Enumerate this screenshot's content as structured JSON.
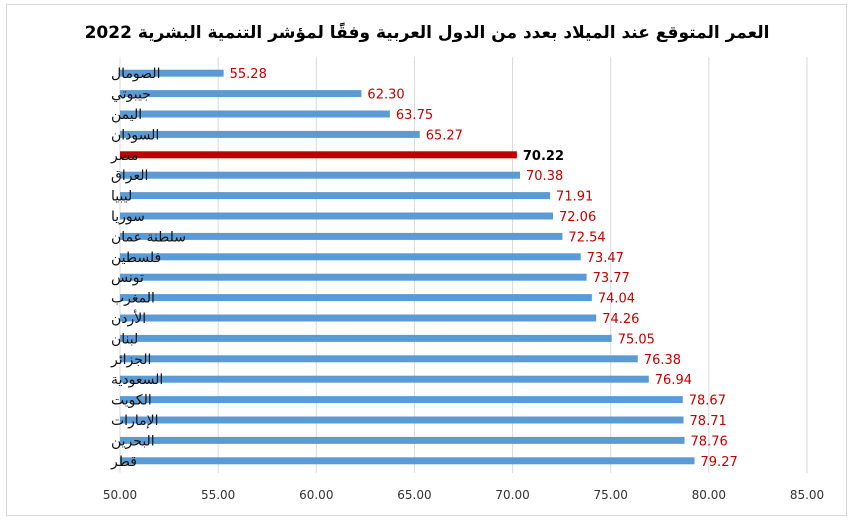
{
  "chart_data": {
    "type": "bar",
    "orientation": "horizontal",
    "title": "العمر المتوقع عند الميلاد بعدد من الدول العربية وفقًا لمؤشر التنمية البشرية 2022",
    "categories": [
      "الصومال",
      "جيبوتي",
      "اليمن",
      "السودان",
      "مصر",
      "العراق",
      "ليبيا",
      "سوريا",
      "سلطنة عمان",
      "فلسطين",
      "تونس",
      "المغرب",
      "الأردن",
      "لبنان",
      "الجزائر",
      "السعودية",
      "الكويت",
      "الإمارات",
      "البحرين",
      "قطر"
    ],
    "values": [
      55.28,
      62.3,
      63.75,
      65.27,
      70.22,
      70.38,
      71.91,
      72.06,
      72.54,
      73.47,
      73.77,
      74.04,
      74.26,
      75.05,
      76.38,
      76.94,
      78.67,
      78.71,
      78.76,
      79.27
    ],
    "value_labels": [
      "55.28",
      "62.30",
      "63.75",
      "65.27",
      "70.22",
      "70.38",
      "71.91",
      "72.06",
      "72.54",
      "73.47",
      "73.77",
      "74.04",
      "74.26",
      "75.05",
      "76.38",
      "76.94",
      "78.67",
      "78.71",
      "78.76",
      "79.27"
    ],
    "highlight_category": "مصر",
    "xlim": [
      50,
      85
    ],
    "xticks": [
      50,
      55,
      60,
      65,
      70,
      75,
      80,
      85
    ],
    "xtick_labels": [
      "50.00",
      "55.00",
      "60.00",
      "65.00",
      "70.00",
      "75.00",
      "80.00",
      "85.00"
    ],
    "grid": true,
    "colors": {
      "bar": "#5b9bd5",
      "highlight_bar": "#c00000",
      "label": "#c00000",
      "highlight_label": "#000000",
      "grid": "#d9d9d9"
    }
  }
}
